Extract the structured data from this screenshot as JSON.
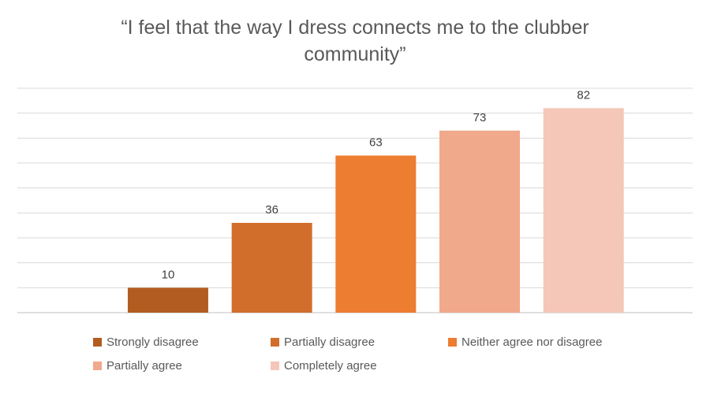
{
  "chart_data": {
    "type": "bar",
    "title": "“I feel that the way I dress connects me to the clubber community”",
    "categories": [
      "Strongly disagree",
      "Partially disagree",
      "Neither agree nor disagree",
      "Partially agree",
      "Completely agree"
    ],
    "values": [
      10,
      36,
      63,
      73,
      82
    ],
    "colors": [
      "#b35c22",
      "#d16e2c",
      "#ed7d31",
      "#f0a98a",
      "#f4c7b8"
    ],
    "ylim": [
      0,
      90
    ],
    "gridlines": true,
    "grid_step": 10,
    "legend": "bottom",
    "xlabel": "",
    "ylabel": ""
  }
}
